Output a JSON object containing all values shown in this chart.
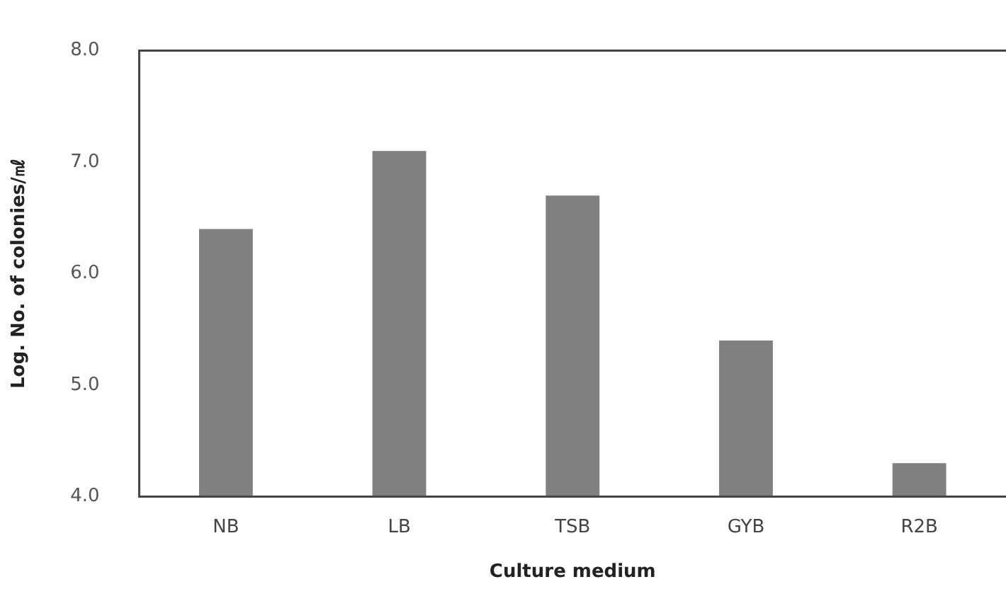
{
  "chart_data": {
    "type": "bar",
    "xlabel": "Culture medium",
    "ylabel": "Log. No. of colonies/㎖",
    "categories": [
      "NB",
      "LB",
      "TSB",
      "GYB",
      "R2B"
    ],
    "values": [
      6.4,
      7.1,
      6.7,
      5.4,
      4.3
    ],
    "color": "#808080",
    "ylim": [
      4.0,
      8.0
    ],
    "yticks": [
      {
        "value": 4,
        "label": "4.0"
      },
      {
        "value": 5,
        "label": "5.0"
      },
      {
        "value": 6,
        "label": "6.0"
      },
      {
        "value": 7,
        "label": "7.0"
      },
      {
        "value": 8,
        "label": "8.0"
      }
    ],
    "grid": false
  }
}
